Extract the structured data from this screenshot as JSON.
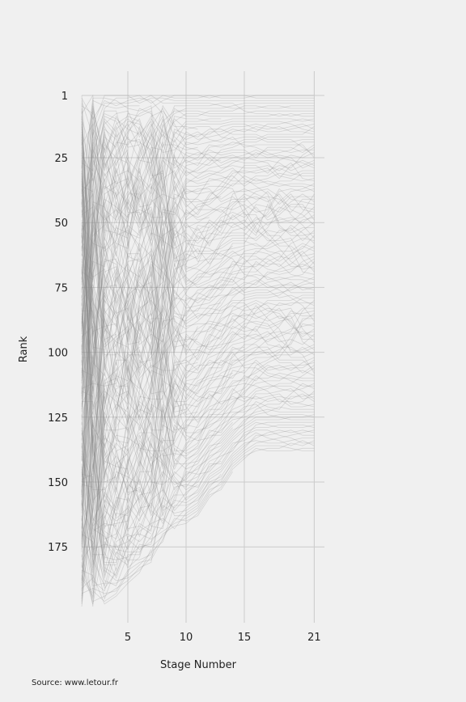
{
  "chart_data": {
    "type": "line",
    "title": "",
    "xlabel": "Stage Number",
    "ylabel": "Rank",
    "source": "Source: www.letour.fr",
    "x_ticks": [
      5,
      10,
      15,
      21
    ],
    "y_ticks": [
      1,
      25,
      50,
      75,
      100,
      125,
      150,
      175
    ],
    "xlim": [
      1,
      21
    ],
    "ylim": [
      1,
      198
    ],
    "y_inverted": true,
    "grid": true,
    "line_color": "#888888",
    "num_riders_start": 198,
    "num_riders_finish": 138,
    "abandon_stages": [
      2,
      3,
      4,
      5,
      6,
      7,
      8,
      9,
      10,
      11,
      12,
      13,
      14,
      15,
      16
    ],
    "series_note": "One faint line per rider showing overall rank after each stage; lines end at the stage where the rider abandoned."
  },
  "colors": {
    "background": "#f0f0f0",
    "grid": "#cbcbcb",
    "lines": "#888888"
  }
}
